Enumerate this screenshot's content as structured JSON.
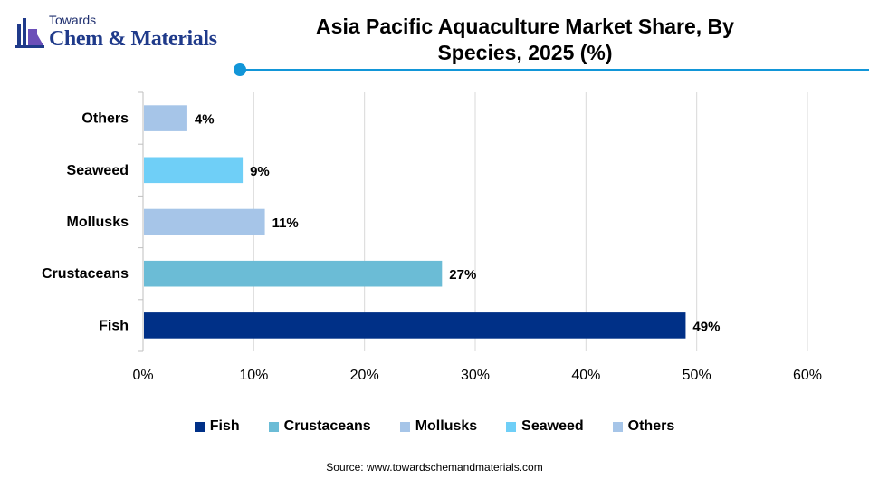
{
  "brand": {
    "line1": "Towards",
    "line2": "Chem & Materials"
  },
  "title": "Asia Pacific Aquaculture Market Share, By Species, 2025 (%)",
  "source": "Source: www.towardschemandmaterials.com",
  "colors": {
    "accent": "#1296d8",
    "Fish": "#003087",
    "Crustaceans": "#6bbcd6",
    "Mollusks": "#a6c5e8",
    "Seaweed": "#6fcff7",
    "Others": "#a6c5e8"
  },
  "chart_data": {
    "type": "bar",
    "orientation": "horizontal",
    "categories": [
      "Others",
      "Seaweed",
      "Mollusks",
      "Crustaceans",
      "Fish"
    ],
    "values": [
      4,
      9,
      11,
      27,
      49
    ],
    "data_labels": [
      "4%",
      "9%",
      "11%",
      "27%",
      "49%"
    ],
    "xlim": [
      0,
      60
    ],
    "x_ticks": [
      "0%",
      "10%",
      "20%",
      "30%",
      "40%",
      "50%",
      "60%"
    ],
    "grid": "vertical",
    "legend": [
      "Fish",
      "Crustaceans",
      "Mollusks",
      "Seaweed",
      "Others"
    ],
    "legend_position": "bottom"
  }
}
